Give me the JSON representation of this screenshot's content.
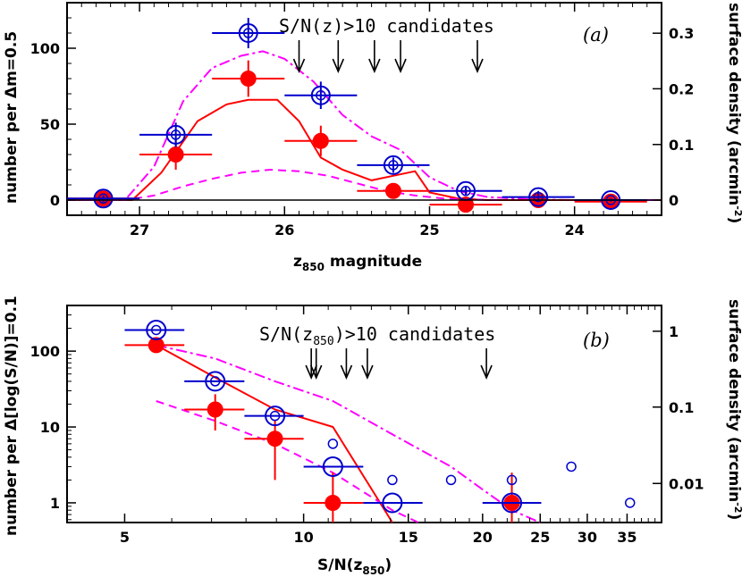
{
  "chart_data": [
    {
      "panel": "(a)",
      "type": "scatter",
      "annotation": "S/N(z)>10 candidates",
      "xlabel": "z",
      "xlabel_sub": "850",
      "xlabel_rest": " magnitude",
      "ylabel": "number per Δm=0.5",
      "y2label": "surface density (arcmin",
      "y2label_sup": "-2",
      "y2label_end": ")",
      "xlim": [
        27.5,
        23.4
      ],
      "ylim": [
        -10,
        130
      ],
      "xticks": [
        27,
        26,
        25,
        24
      ],
      "yticks": [
        0,
        50,
        100
      ],
      "y2ticks": [
        {
          "label": "0",
          "y": 0
        },
        {
          "label": "0.1",
          "y": 36.6
        },
        {
          "label": "0.2",
          "y": 73.3
        },
        {
          "label": "0.3",
          "y": 109.9
        }
      ],
      "arrows_x": [
        25.9,
        25.63,
        25.38,
        25.2,
        24.67
      ],
      "series": [
        {
          "name": "red filled",
          "points": [
            {
              "x": 27.25,
              "y": 1,
              "xerr": 0.25,
              "yerr_lo": 2,
              "yerr_hi": 2
            },
            {
              "x": 26.75,
              "y": 30,
              "xerr": 0.25,
              "yerr_lo": 10,
              "yerr_hi": 10
            },
            {
              "x": 26.25,
              "y": 80,
              "xerr": 0.25,
              "yerr_lo": 12,
              "yerr_hi": 12
            },
            {
              "x": 25.75,
              "y": 39,
              "xerr": 0.25,
              "yerr_lo": 10,
              "yerr_hi": 10
            },
            {
              "x": 25.25,
              "y": 6,
              "xerr": 0.25,
              "yerr_lo": 4,
              "yerr_hi": 4
            },
            {
              "x": 24.75,
              "y": -3,
              "xerr": 0.25,
              "yerr_lo": 2,
              "yerr_hi": 2
            },
            {
              "x": 24.25,
              "y": 0,
              "xerr": 0.25,
              "yerr_lo": 2,
              "yerr_hi": 2
            },
            {
              "x": 23.75,
              "y": -1,
              "xerr": 0.25,
              "yerr_lo": 1,
              "yerr_hi": 1
            }
          ]
        },
        {
          "name": "blue open",
          "points": [
            {
              "x": 27.25,
              "y": 1,
              "xerr": 0.25,
              "yerr_lo": 2,
              "yerr_hi": 2
            },
            {
              "x": 26.75,
              "y": 43,
              "xerr": 0.25,
              "yerr_lo": 8,
              "yerr_hi": 8
            },
            {
              "x": 26.25,
              "y": 110,
              "xerr": 0.25,
              "yerr_lo": 10,
              "yerr_hi": 10
            },
            {
              "x": 25.75,
              "y": 69,
              "xerr": 0.25,
              "yerr_lo": 9,
              "yerr_hi": 9
            },
            {
              "x": 25.25,
              "y": 23,
              "xerr": 0.25,
              "yerr_lo": 5,
              "yerr_hi": 5
            },
            {
              "x": 24.75,
              "y": 6,
              "xerr": 0.25,
              "yerr_lo": 3,
              "yerr_hi": 3
            },
            {
              "x": 24.25,
              "y": 2,
              "xerr": 0.25,
              "yerr_lo": 2,
              "yerr_hi": 4
            },
            {
              "x": 23.75,
              "y": 0,
              "xerr": 0.25,
              "yerr_lo": 1,
              "yerr_hi": 1
            }
          ]
        }
      ],
      "curves": [
        {
          "name": "red solid",
          "x": [
            27.5,
            27.05,
            26.85,
            26.6,
            26.4,
            26.25,
            26.05,
            25.9,
            25.75,
            25.6,
            25.4,
            25.25,
            25.1,
            25.0,
            24.8,
            24.6,
            24.3,
            24.0,
            23.4
          ],
          "y": [
            0,
            0,
            18,
            52,
            63,
            66,
            66,
            52,
            28,
            20,
            13,
            16,
            19,
            5,
            1,
            0,
            0,
            0,
            0
          ]
        },
        {
          "name": "magenta dash-dot",
          "x": [
            27.5,
            27.1,
            26.9,
            26.7,
            26.5,
            26.3,
            26.15,
            26.0,
            25.8,
            25.6,
            25.4,
            25.2,
            25.0,
            24.8,
            24.6,
            24.3,
            24.0,
            23.4
          ],
          "y": [
            0,
            0,
            22,
            65,
            87,
            95,
            98,
            93,
            78,
            56,
            42,
            33,
            15,
            6,
            2,
            0.5,
            0,
            0
          ]
        },
        {
          "name": "magenta dashed",
          "x": [
            27.5,
            27.1,
            26.9,
            26.7,
            26.5,
            26.3,
            26.1,
            25.9,
            25.7,
            25.5,
            25.3,
            25.1,
            24.9,
            24.7,
            24.5,
            24.3,
            24.0,
            23.4
          ],
          "y": [
            0,
            0,
            3,
            9,
            14,
            18,
            20,
            19,
            16,
            11,
            6,
            3,
            1,
            0.3,
            0,
            0,
            0,
            0
          ]
        }
      ]
    },
    {
      "panel": "(b)",
      "type": "scatter",
      "annotation": "S/N(z",
      "annotation_sub": "850",
      "annotation_rest": ")>10 candidates",
      "xlabel": "S/N(z",
      "xlabel_sub": "850",
      "xlabel_rest": ")",
      "ylabel": "number per Δ[log(S/N)]=0.1",
      "y2label": "surface density (arcmin",
      "y2label_sup": "-2",
      "y2label_end": ")",
      "xscale": "log",
      "yscale": "log",
      "xlim": [
        4,
        40
      ],
      "ylim": [
        0.55,
        400
      ],
      "xticks": [
        5,
        10,
        15,
        20,
        25,
        30,
        35
      ],
      "yticks": [
        1,
        10,
        100
      ],
      "y2ticks": [
        {
          "label": "0.01",
          "y": 1.8
        },
        {
          "label": "0.1",
          "y": 18.3
        },
        {
          "label": "1",
          "y": 183
        }
      ],
      "arrows_x": [
        10.3,
        10.5,
        11.8,
        12.8,
        20.3
      ],
      "series": [
        {
          "name": "red filled",
          "points": [
            {
              "x": 5.65,
              "y": 120,
              "xlo": 5.0,
              "xhi": 6.3,
              "ylo": 100,
              "yhi": 140
            },
            {
              "x": 7.1,
              "y": 17,
              "xlo": 6.3,
              "xhi": 7.95,
              "ylo": 9,
              "yhi": 27
            },
            {
              "x": 8.95,
              "y": 7,
              "xlo": 7.95,
              "xhi": 10.0,
              "ylo": 2,
              "yhi": 12
            },
            {
              "x": 11.2,
              "y": 1,
              "xlo": 10.0,
              "xhi": 12.6,
              "ylo": 0.5,
              "yhi": 2.5
            },
            {
              "x": 22.4,
              "y": 1,
              "xlo": 20.0,
              "xhi": 25.1,
              "ylo": 0.5,
              "yhi": 2.5
            }
          ]
        },
        {
          "name": "blue open",
          "points": [
            {
              "x": 5.65,
              "y": 190,
              "xlo": 5.0,
              "xhi": 6.3
            },
            {
              "x": 7.1,
              "y": 40,
              "xlo": 6.3,
              "xhi": 7.95
            },
            {
              "x": 8.95,
              "y": 14,
              "xlo": 7.95,
              "xhi": 10.0
            },
            {
              "x": 11.2,
              "y": 3,
              "xlo": 10.0,
              "xhi": 12.6
            },
            {
              "x": 14.1,
              "y": 1,
              "xlo": 12.6,
              "xhi": 15.85
            },
            {
              "x": 22.4,
              "y": 1,
              "xlo": 20.0,
              "xhi": 25.1
            }
          ]
        },
        {
          "name": "blue small open",
          "points": [
            {
              "x": 5.65,
              "y": 190
            },
            {
              "x": 7.1,
              "y": 40
            },
            {
              "x": 8.95,
              "y": 14
            },
            {
              "x": 11.2,
              "y": 6
            },
            {
              "x": 14.1,
              "y": 2
            },
            {
              "x": 17.7,
              "y": 2
            },
            {
              "x": 22.4,
              "y": 2
            },
            {
              "x": 28.2,
              "y": 3
            },
            {
              "x": 35.4,
              "y": 1
            }
          ]
        }
      ],
      "curves": [
        {
          "name": "red solid",
          "x": [
            5.65,
            7.1,
            8.95,
            11.2,
            14.1
          ],
          "y": [
            120,
            45,
            17,
            10,
            0.55
          ]
        },
        {
          "name": "magenta dash-dot",
          "x": [
            5.65,
            7.1,
            8.95,
            11.2,
            14.1,
            17.7,
            20.0,
            22.4,
            25.0
          ],
          "y": [
            120,
            80,
            40,
            22,
            8,
            3,
            1.5,
            0.8,
            0.55
          ]
        },
        {
          "name": "magenta dashed",
          "x": [
            5.65,
            7.1,
            8.95,
            11.2,
            14.1,
            15.6
          ],
          "y": [
            22,
            12,
            6,
            2.5,
            0.8,
            0.55
          ]
        }
      ]
    }
  ]
}
